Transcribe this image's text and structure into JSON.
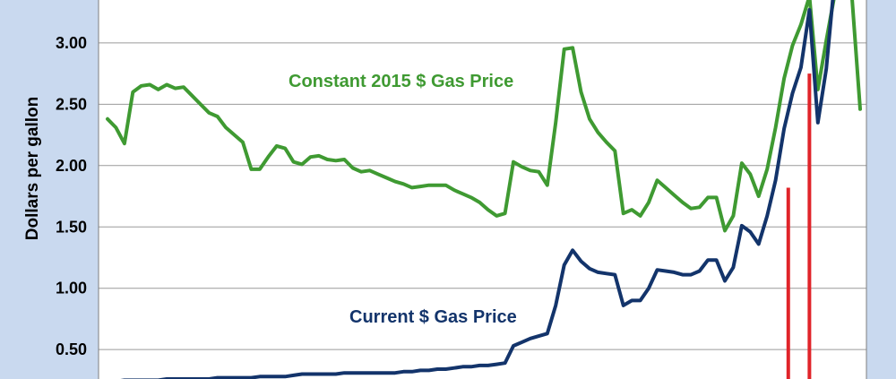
{
  "chart_data": {
    "type": "line",
    "title": "",
    "xlabel": "",
    "ylabel": "Dollars per gallon",
    "ylim": [
      0.26,
      3.35
    ],
    "yticks": [
      {
        "value": 0.5,
        "label": "0.50"
      },
      {
        "value": 1.0,
        "label": "1.00"
      },
      {
        "value": 1.5,
        "label": "1.50"
      },
      {
        "value": 2.0,
        "label": "2.00"
      },
      {
        "value": 2.5,
        "label": "2.50"
      },
      {
        "value": 3.0,
        "label": "3.00"
      }
    ],
    "grid": true,
    "colors": {
      "constant": "#3f9a32",
      "current": "#13346b",
      "marker": "#e0242a",
      "plot_bg": "#ffffff",
      "frame_bg": "#c9d9ef"
    },
    "series": [
      {
        "name": "Constant 2015 $ Gas Price",
        "label_text": "Constant 2015 $ Gas Price",
        "values": [
          2.38,
          2.31,
          2.18,
          2.6,
          2.65,
          2.66,
          2.62,
          2.66,
          2.63,
          2.64,
          2.57,
          2.5,
          2.43,
          2.4,
          2.31,
          2.25,
          2.19,
          1.97,
          1.97,
          2.07,
          2.16,
          2.14,
          2.03,
          2.01,
          2.07,
          2.08,
          2.05,
          2.04,
          2.05,
          1.98,
          1.95,
          1.96,
          1.93,
          1.9,
          1.87,
          1.85,
          1.82,
          1.83,
          1.84,
          1.84,
          1.84,
          1.8,
          1.77,
          1.74,
          1.7,
          1.64,
          1.59,
          1.61,
          2.03,
          1.99,
          1.96,
          1.95,
          1.84,
          2.35,
          2.95,
          2.96,
          2.6,
          2.38,
          2.27,
          2.19,
          2.12,
          1.61,
          1.64,
          1.59,
          1.7,
          1.88,
          1.82,
          1.76,
          1.7,
          1.65,
          1.66,
          1.74,
          1.74,
          1.47,
          1.59,
          2.02,
          1.93,
          1.75,
          1.97,
          2.31,
          2.71,
          2.98,
          3.15,
          3.38,
          2.62,
          3.02,
          3.4,
          3.4,
          3.4,
          2.46
        ]
      },
      {
        "name": "Current $ Gas Price",
        "label_text": "Current $ Gas Price",
        "values": [
          0.24,
          0.24,
          0.25,
          0.25,
          0.25,
          0.25,
          0.25,
          0.26,
          0.26,
          0.26,
          0.26,
          0.26,
          0.26,
          0.27,
          0.27,
          0.27,
          0.27,
          0.27,
          0.28,
          0.28,
          0.28,
          0.28,
          0.29,
          0.3,
          0.3,
          0.3,
          0.3,
          0.3,
          0.31,
          0.31,
          0.31,
          0.31,
          0.31,
          0.31,
          0.31,
          0.32,
          0.32,
          0.33,
          0.33,
          0.34,
          0.34,
          0.35,
          0.36,
          0.36,
          0.37,
          0.37,
          0.38,
          0.39,
          0.53,
          0.56,
          0.59,
          0.61,
          0.63,
          0.86,
          1.19,
          1.31,
          1.22,
          1.16,
          1.13,
          1.12,
          1.11,
          0.86,
          0.9,
          0.9,
          1.0,
          1.15,
          1.14,
          1.13,
          1.11,
          1.11,
          1.14,
          1.23,
          1.23,
          1.06,
          1.17,
          1.51,
          1.46,
          1.36,
          1.59,
          1.88,
          2.3,
          2.59,
          2.8,
          3.27,
          2.35,
          2.79,
          3.53,
          3.64,
          3.53,
          3.4
        ]
      }
    ],
    "markers": [
      {
        "index": 80.5,
        "top_value": 1.82
      },
      {
        "index": 83.0,
        "top_value": 2.75
      }
    ]
  }
}
